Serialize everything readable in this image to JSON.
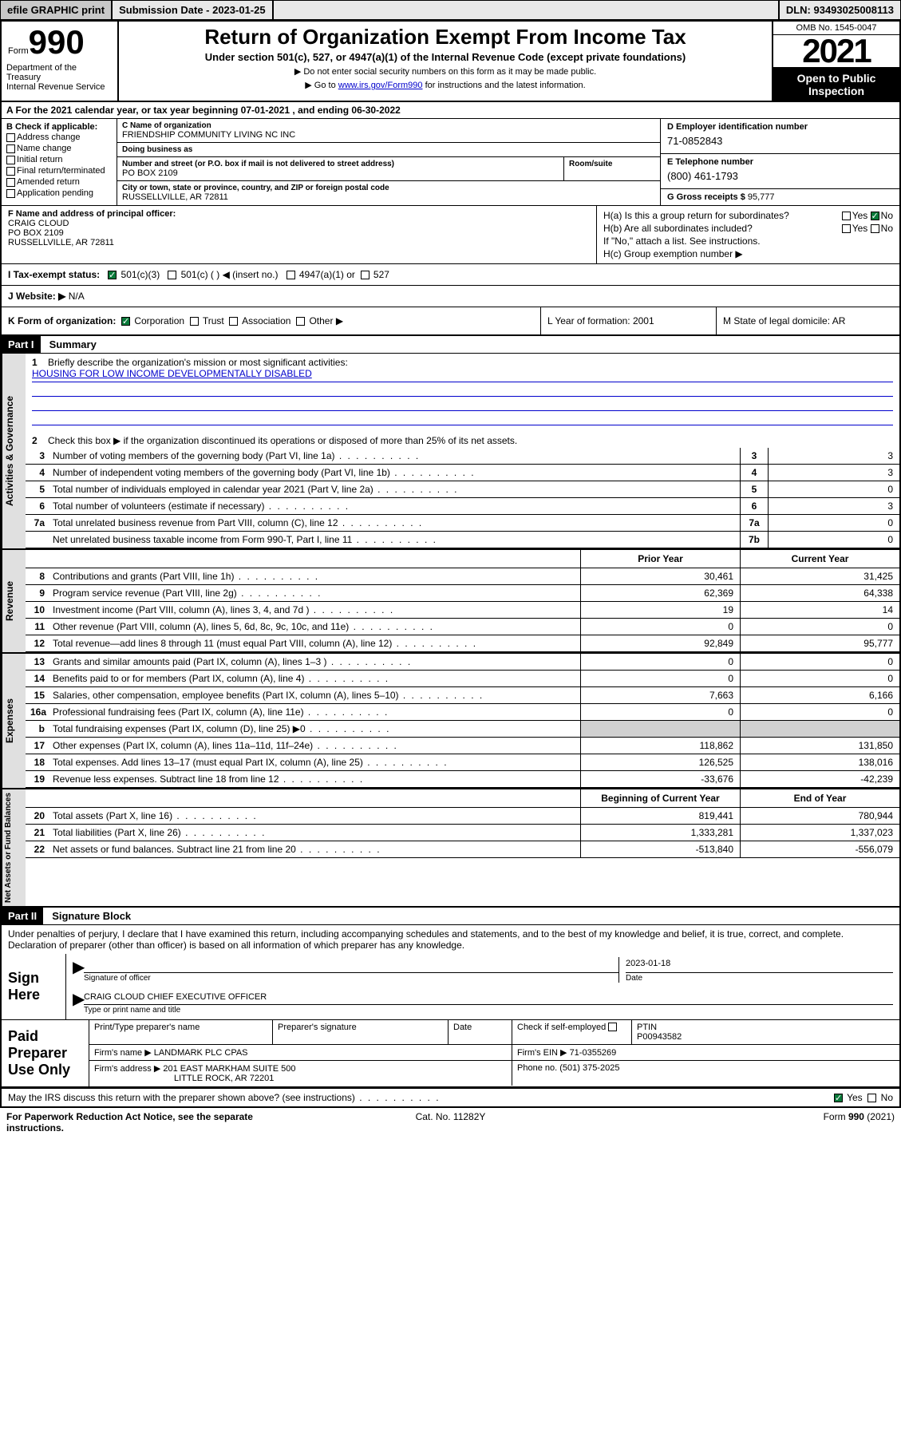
{
  "topbar": {
    "efile": "efile GRAPHIC print",
    "subdate_label": "Submission Date - 2023-01-25",
    "dln": "DLN: 93493025008113"
  },
  "header": {
    "form_label": "Form",
    "form_num": "990",
    "title": "Return of Organization Exempt From Income Tax",
    "sub": "Under section 501(c), 527, or 4947(a)(1) of the Internal Revenue Code (except private foundations)",
    "note1": "▶ Do not enter social security numbers on this form as it may be made public.",
    "note2_a": "▶ Go to ",
    "note2_link": "www.irs.gov/Form990",
    "note2_b": " for instructions and the latest information.",
    "dept": "Department of the Treasury\nInternal Revenue Service",
    "omb": "OMB No. 1545-0047",
    "year": "2021",
    "open": "Open to Public Inspection"
  },
  "section_a": {
    "text_a": "A For the 2021 calendar year, or tax year beginning ",
    "begin": "07-01-2021",
    "text_b": " , and ending ",
    "end": "06-30-2022"
  },
  "col_b": {
    "label": "B Check if applicable:",
    "items": [
      "Address change",
      "Name change",
      "Initial return",
      "Final return/terminated",
      "Amended return",
      "Application pending"
    ]
  },
  "col_c": {
    "name_label": "C Name of organization",
    "name": "FRIENDSHIP COMMUNITY LIVING NC INC",
    "dba_label": "Doing business as",
    "dba": "",
    "addr_label": "Number and street (or P.O. box if mail is not delivered to street address)",
    "room_label": "Room/suite",
    "addr": "PO BOX 2109",
    "city_label": "City or town, state or province, country, and ZIP or foreign postal code",
    "city": "RUSSELLVILLE, AR  72811"
  },
  "col_d": {
    "label": "D Employer identification number",
    "val": "71-0852843"
  },
  "col_e": {
    "label": "E Telephone number",
    "val": "(800) 461-1793"
  },
  "col_g": {
    "label": "G Gross receipts $ ",
    "val": "95,777"
  },
  "col_f": {
    "label": "F Name and address of principal officer:",
    "name": "CRAIG CLOUD",
    "addr1": "PO BOX 2109",
    "addr2": "RUSSELLVILLE, AR  72811"
  },
  "col_h": {
    "ha": "H(a)  Is this a group return for subordinates?",
    "hb": "H(b)  Are all subordinates included?",
    "hb_note": "If \"No,\" attach a list. See instructions.",
    "hc": "H(c)  Group exemption number ▶",
    "yes": "Yes",
    "no": "No"
  },
  "row_i": {
    "label": "I  Tax-exempt status:",
    "opt1": "501(c)(3)",
    "opt2": "501(c) (  ) ◀ (insert no.)",
    "opt3": "4947(a)(1) or",
    "opt4": "527"
  },
  "row_j": {
    "label": "J  Website: ▶",
    "val": "N/A"
  },
  "row_k": {
    "label": "K Form of organization:",
    "opts": [
      "Corporation",
      "Trust",
      "Association",
      "Other ▶"
    ],
    "l": "L Year of formation: 2001",
    "m": "M State of legal domicile: AR"
  },
  "part1": {
    "header": "Part I",
    "title": "Summary",
    "q1": "Briefly describe the organization's mission or most significant activities:",
    "mission": "HOUSING FOR LOW INCOME DEVELOPMENTALLY DISABLED",
    "q2": "Check this box ▶        if the organization discontinued its operations or disposed of more than 25% of its net assets.",
    "vtab1": "Activities & Governance",
    "vtab2": "Revenue",
    "vtab3": "Expenses",
    "vtab4": "Net Assets or Fund Balances",
    "prior": "Prior Year",
    "current": "Current Year",
    "begin": "Beginning of Current Year",
    "end": "End of Year",
    "rows_gov": [
      {
        "n": "3",
        "t": "Number of voting members of the governing body (Part VI, line 1a)",
        "box": "3",
        "v": "3"
      },
      {
        "n": "4",
        "t": "Number of independent voting members of the governing body (Part VI, line 1b)",
        "box": "4",
        "v": "3"
      },
      {
        "n": "5",
        "t": "Total number of individuals employed in calendar year 2021 (Part V, line 2a)",
        "box": "5",
        "v": "0"
      },
      {
        "n": "6",
        "t": "Total number of volunteers (estimate if necessary)",
        "box": "6",
        "v": "3"
      },
      {
        "n": "7a",
        "t": "Total unrelated business revenue from Part VIII, column (C), line 12",
        "box": "7a",
        "v": "0"
      },
      {
        "n": "",
        "t": "Net unrelated business taxable income from Form 990-T, Part I, line 11",
        "box": "7b",
        "v": "0"
      }
    ],
    "rows_rev": [
      {
        "n": "8",
        "t": "Contributions and grants (Part VIII, line 1h)",
        "p": "30,461",
        "c": "31,425"
      },
      {
        "n": "9",
        "t": "Program service revenue (Part VIII, line 2g)",
        "p": "62,369",
        "c": "64,338"
      },
      {
        "n": "10",
        "t": "Investment income (Part VIII, column (A), lines 3, 4, and 7d )",
        "p": "19",
        "c": "14"
      },
      {
        "n": "11",
        "t": "Other revenue (Part VIII, column (A), lines 5, 6d, 8c, 9c, 10c, and 11e)",
        "p": "0",
        "c": "0"
      },
      {
        "n": "12",
        "t": "Total revenue—add lines 8 through 11 (must equal Part VIII, column (A), line 12)",
        "p": "92,849",
        "c": "95,777"
      }
    ],
    "rows_exp": [
      {
        "n": "13",
        "t": "Grants and similar amounts paid (Part IX, column (A), lines 1–3 )",
        "p": "0",
        "c": "0"
      },
      {
        "n": "14",
        "t": "Benefits paid to or for members (Part IX, column (A), line 4)",
        "p": "0",
        "c": "0"
      },
      {
        "n": "15",
        "t": "Salaries, other compensation, employee benefits (Part IX, column (A), lines 5–10)",
        "p": "7,663",
        "c": "6,166"
      },
      {
        "n": "16a",
        "t": "Professional fundraising fees (Part IX, column (A), line 11e)",
        "p": "0",
        "c": "0"
      },
      {
        "n": "b",
        "t": "Total fundraising expenses (Part IX, column (D), line 25) ▶0",
        "p": "",
        "c": "",
        "shaded": true
      },
      {
        "n": "17",
        "t": "Other expenses (Part IX, column (A), lines 11a–11d, 11f–24e)",
        "p": "118,862",
        "c": "131,850"
      },
      {
        "n": "18",
        "t": "Total expenses. Add lines 13–17 (must equal Part IX, column (A), line 25)",
        "p": "126,525",
        "c": "138,016"
      },
      {
        "n": "19",
        "t": "Revenue less expenses. Subtract line 18 from line 12",
        "p": "-33,676",
        "c": "-42,239"
      }
    ],
    "rows_net": [
      {
        "n": "20",
        "t": "Total assets (Part X, line 16)",
        "p": "819,441",
        "c": "780,944"
      },
      {
        "n": "21",
        "t": "Total liabilities (Part X, line 26)",
        "p": "1,333,281",
        "c": "1,337,023"
      },
      {
        "n": "22",
        "t": "Net assets or fund balances. Subtract line 21 from line 20",
        "p": "-513,840",
        "c": "-556,079"
      }
    ]
  },
  "part2": {
    "header": "Part II",
    "title": "Signature Block",
    "penalty": "Under penalties of perjury, I declare that I have examined this return, including accompanying schedules and statements, and to the best of my knowledge and belief, it is true, correct, and complete. Declaration of preparer (other than officer) is based on all information of which preparer has any knowledge.",
    "sign_here": "Sign Here",
    "sig_of_officer": "Signature of officer",
    "sig_date_label": "Date",
    "sig_date": "2023-01-18",
    "officer_name": "CRAIG CLOUD  CHIEF EXECUTIVE OFFICER",
    "type_name": "Type or print name and title",
    "paid_label": "Paid Preparer Use Only",
    "prep_name_label": "Print/Type preparer's name",
    "prep_sig_label": "Preparer's signature",
    "prep_date_label": "Date",
    "check_if": "Check         if self-employed",
    "ptin_label": "PTIN",
    "ptin": "P00943582",
    "firm_name_label": "Firm's name    ▶",
    "firm_name": "LANDMARK PLC CPAS",
    "firm_ein_label": "Firm's EIN ▶",
    "firm_ein": "71-0355269",
    "firm_addr_label": "Firm's address ▶",
    "firm_addr1": "201 EAST MARKHAM SUITE 500",
    "firm_addr2": "LITTLE ROCK, AR  72201",
    "phone_label": "Phone no.",
    "phone": "(501) 375-2025",
    "discuss": "May the IRS discuss this return with the preparer shown above? (see instructions)",
    "yes": "Yes",
    "no": "No"
  },
  "footer": {
    "left": "For Paperwork Reduction Act Notice, see the separate instructions.",
    "mid": "Cat. No. 11282Y",
    "right": "Form 990 (2021)"
  }
}
